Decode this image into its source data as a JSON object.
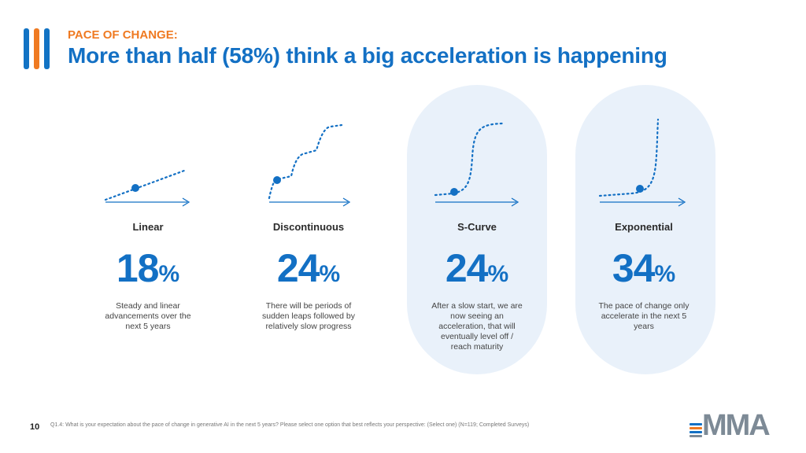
{
  "header": {
    "kicker": "PACE OF CHANGE:",
    "title": "More than half (58%) think a big acceleration is happening"
  },
  "colors": {
    "brand_blue": "#1370c4",
    "brand_orange": "#ef7a22",
    "highlight_pill": "#e9f1fa"
  },
  "chart_data": {
    "type": "table",
    "categories": [
      "Linear",
      "Discontinuous",
      "S-Curve",
      "Exponential"
    ],
    "values": [
      18,
      24,
      24,
      34
    ],
    "unit": "%",
    "highlighted": [
      "S-Curve",
      "Exponential"
    ]
  },
  "options": [
    {
      "label": "Linear",
      "value": "18",
      "unit": "%",
      "description": "Steady and linear advancements over the next 5 years",
      "icon": "linear-curve-icon"
    },
    {
      "label": "Discontinuous",
      "value": "24",
      "unit": "%",
      "description": "There will be periods of sudden leaps followed by relatively slow progress",
      "icon": "stepped-curve-icon"
    },
    {
      "label": "S-Curve",
      "value": "24",
      "unit": "%",
      "description": "After a slow start, we are now seeing an acceleration, that will eventually level off / reach maturity",
      "icon": "s-curve-icon"
    },
    {
      "label": "Exponential",
      "value": "34",
      "unit": "%",
      "description": "The pace of change only accelerate in the next 5 years",
      "icon": "exponential-curve-icon"
    }
  ],
  "footer": {
    "page_number": "10",
    "footnote": "Q1.4: What is your expectation about the pace of change in generative AI in the next 5 years? Please select one option that best reflects your perspective: (Select one) (N=119; Completed Surveys)",
    "logo_text": "MMA"
  }
}
